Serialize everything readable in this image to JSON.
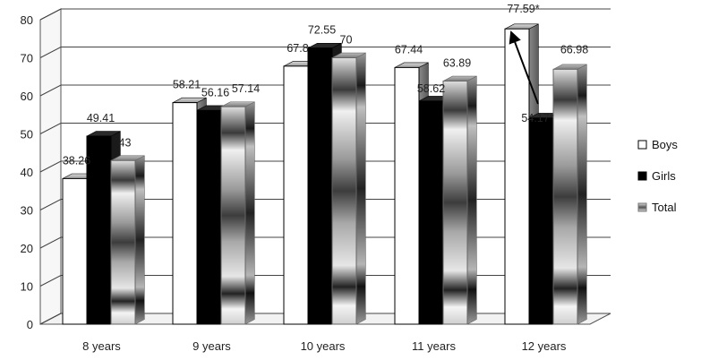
{
  "chart_data": {
    "type": "bar",
    "categories": [
      "8 years",
      "9 years",
      "10 years",
      "11 years",
      "12 years"
    ],
    "series": [
      {
        "name": "Boys",
        "values": [
          38.26,
          58.21,
          67.8,
          67.44,
          77.59
        ],
        "labels": [
          "38.26",
          "58.21",
          "67.8",
          "67.44",
          "77.59*"
        ]
      },
      {
        "name": "Girls",
        "values": [
          49.41,
          56.16,
          72.55,
          58.62,
          54.17
        ],
        "labels": [
          "49.41",
          "56.16",
          "72.55",
          "58.62",
          "54.17*"
        ]
      },
      {
        "name": "Total",
        "values": [
          43,
          57.14,
          70,
          63.89,
          66.98
        ],
        "labels": [
          "43",
          "57.14",
          "70",
          "63.89",
          "66.98"
        ]
      }
    ],
    "yticks": [
      "0",
      "10",
      "20",
      "30",
      "40",
      "50",
      "60",
      "70",
      "80"
    ],
    "ylim": [
      0,
      80
    ],
    "grid": true,
    "legend_position": "right",
    "colors": {
      "Boys": "#ffffff",
      "Girls": "#111111",
      "Total": "#9a9a9a"
    }
  }
}
